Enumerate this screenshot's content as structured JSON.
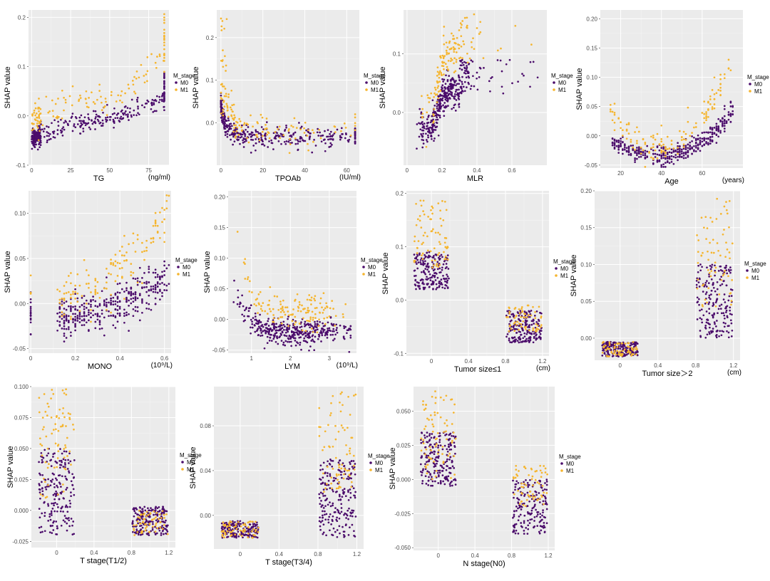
{
  "colors": {
    "M0": "#4b0c6b",
    "M1": "#f5b52e",
    "panel": "#ebebeb"
  },
  "chart_data": [
    {
      "type": "scatter",
      "id": "tg",
      "xlabel": "TG",
      "unit": "(ng/ml)",
      "ylabel": "SHAP value",
      "xlim": [
        -2,
        88
      ],
      "ylim": [
        -0.1,
        0.215
      ],
      "xticks": [
        0,
        25,
        50,
        75
      ],
      "yticks": [
        -0.1,
        0.0,
        0.1,
        0.2
      ],
      "ytick_labels": [
        "-0.1",
        "0.0",
        "0.1",
        "0.2"
      ],
      "legend": {
        "title": "M_stage",
        "entries": [
          "M0",
          "M1"
        ]
      },
      "shape": "tg",
      "density": "medium",
      "series": [
        {
          "name": "M0",
          "x_range": [
            0,
            85
          ],
          "y_trend": [
            [
              0,
              -0.045
            ],
            [
              25,
              -0.015
            ],
            [
              50,
              -0.005
            ],
            [
              85,
              0.03
            ]
          ],
          "spread": 0.02
        },
        {
          "name": "M1",
          "x_range": [
            0,
            85
          ],
          "y_trend": [
            [
              0,
              -0.01
            ],
            [
              25,
              0.04
            ],
            [
              50,
              0.03
            ],
            [
              85,
              0.12
            ]
          ],
          "spread": 0.035
        }
      ]
    },
    {
      "type": "scatter",
      "id": "tpoab",
      "xlabel": "TPOAb",
      "unit": "(IU/ml)",
      "ylabel": "SHAP value",
      "xlim": [
        -2,
        66
      ],
      "ylim": [
        -0.1,
        0.265
      ],
      "xticks": [
        0,
        20,
        40,
        60
      ],
      "yticks": [
        0.0,
        0.1,
        0.2
      ],
      "ytick_labels": [
        "0.0",
        "0.1",
        "0.2"
      ],
      "legend": {
        "title": "M_stage",
        "entries": [
          "M0",
          "M1"
        ]
      },
      "shape": "decay",
      "series": [
        {
          "name": "M0",
          "peak": 0.04,
          "base": -0.035,
          "spread": 0.012
        },
        {
          "name": "M1",
          "peak": 0.25,
          "base": -0.02,
          "spread": 0.012
        }
      ]
    },
    {
      "type": "scatter",
      "id": "mlr",
      "xlabel": "MLR",
      "unit": "",
      "ylabel": "SHAP value",
      "xlim": [
        -0.02,
        0.8
      ],
      "ylim": [
        -0.09,
        0.175
      ],
      "xticks": [
        0.0,
        0.2,
        0.4,
        0.6
      ],
      "yticks": [
        0.0,
        0.1
      ],
      "ytick_labels": [
        "0.0",
        "0.1"
      ],
      "legend": {
        "title": "M_stage",
        "entries": [
          "M0",
          "M1"
        ]
      },
      "shape": "sigmoid",
      "series": [
        {
          "name": "M0",
          "low": -0.03,
          "high": 0.04,
          "spread": 0.015
        },
        {
          "name": "M1",
          "low": -0.01,
          "high": 0.11,
          "spread": 0.02
        }
      ]
    },
    {
      "type": "scatter",
      "id": "age",
      "xlabel": "Age",
      "unit": "(years)",
      "ylabel": "SHAP value",
      "xlim": [
        10,
        80
      ],
      "ylim": [
        -0.055,
        0.215
      ],
      "xticks": [
        20,
        40,
        60
      ],
      "yticks": [
        -0.05,
        0.0,
        0.05,
        0.1,
        0.15,
        0.2
      ],
      "ytick_labels": [
        "-0.05",
        "0.00",
        "0.05",
        "0.10",
        "0.15",
        "0.20"
      ],
      "legend": {
        "title": "M_stage",
        "entries": [
          "M0",
          "M1"
        ]
      },
      "shape": "ushape",
      "series": [
        {
          "name": "M0",
          "min_x": 38,
          "min_y": -0.035,
          "curv": 5.5e-05,
          "spread": 0.008
        },
        {
          "name": "M1",
          "min_x": 38,
          "min_y": -0.02,
          "curv": 0.00011,
          "spread": 0.012
        }
      ]
    },
    {
      "type": "scatter",
      "id": "mono",
      "xlabel": "MONO",
      "unit": "(10⁹/L)",
      "ylabel": "SHAP value",
      "xlim": [
        -0.01,
        0.63
      ],
      "ylim": [
        -0.055,
        0.125
      ],
      "xticks": [
        0.0,
        0.2,
        0.4,
        0.6
      ],
      "yticks": [
        -0.05,
        0.0,
        0.05,
        0.1
      ],
      "ytick_labels": [
        "-0.05",
        "0.00",
        "0.05",
        "0.10"
      ],
      "legend": {
        "title": "M_stage",
        "entries": [
          "M0",
          "M1"
        ]
      },
      "shape": "rising",
      "series": [
        {
          "name": "M0",
          "start": -0.015,
          "end": 0.03,
          "spread": 0.012
        },
        {
          "name": "M1",
          "start": 0.005,
          "end": 0.1,
          "spread": 0.015
        }
      ]
    },
    {
      "type": "scatter",
      "id": "lym",
      "xlabel": "LYM",
      "unit": "(10⁹/L)",
      "ylabel": "SHAP value",
      "xlim": [
        0.4,
        3.7
      ],
      "ylim": [
        -0.055,
        0.21
      ],
      "xticks": [
        1,
        2,
        3
      ],
      "yticks": [
        -0.05,
        0.0,
        0.05,
        0.1,
        0.15,
        0.2
      ],
      "ytick_labels": [
        "-0.05",
        "0.00",
        "0.05",
        "0.10",
        "0.15",
        "0.20"
      ],
      "legend": {
        "title": "M_stage",
        "entries": [
          "M0",
          "M1"
        ]
      },
      "shape": "lym",
      "series": [
        {
          "name": "M0",
          "peak": 0.06,
          "base": -0.02,
          "spread": 0.01
        },
        {
          "name": "M1",
          "peak": 0.19,
          "base": 0.01,
          "spread": 0.015
        }
      ]
    },
    {
      "type": "scatter",
      "id": "ts1",
      "xlabel": "Tumor size≤1",
      "unit": "(cm)",
      "ylabel": "SHAP value",
      "xlim": [
        -0.27,
        1.27
      ],
      "ylim": [
        -0.105,
        0.205
      ],
      "xticks": [
        0.0,
        0.4,
        0.8,
        1.2
      ],
      "yticks": [
        -0.1,
        0.0,
        0.1,
        0.2
      ],
      "ytick_labels": [
        "-0.1",
        "0.0",
        "0.1",
        "0.2"
      ],
      "legend": {
        "title": "M_stage",
        "entries": [
          "M0",
          "M1"
        ]
      },
      "shape": "binary",
      "series": [
        {
          "name": "M0",
          "at0": [
            0.02,
            0.09
          ],
          "at1": [
            -0.08,
            -0.02
          ]
        },
        {
          "name": "M1",
          "at0": [
            0.06,
            0.19
          ],
          "at1": [
            -0.06,
            -0.01
          ]
        }
      ]
    },
    {
      "type": "scatter",
      "id": "ts2",
      "xlabel": "Tumor size＞2",
      "unit": "(cm)",
      "ylabel": "SHAP value",
      "xlim": [
        -0.27,
        1.27
      ],
      "ylim": [
        -0.03,
        0.2
      ],
      "xticks": [
        0.0,
        0.4,
        0.8,
        1.2
      ],
      "yticks": [
        0.0,
        0.05,
        0.1,
        0.15,
        0.2
      ],
      "ytick_labels": [
        "0.00",
        "0.05",
        "0.10",
        "0.15",
        "0.20"
      ],
      "legend": {
        "title": "M_stage",
        "entries": [
          "M0",
          "M1"
        ]
      },
      "shape": "binary",
      "series": [
        {
          "name": "M0",
          "at0": [
            -0.025,
            -0.005
          ],
          "at1": [
            0.0,
            0.1
          ]
        },
        {
          "name": "M1",
          "at0": [
            -0.025,
            -0.005
          ],
          "at1": [
            0.04,
            0.19
          ]
        }
      ]
    },
    {
      "type": "scatter",
      "id": "t12",
      "xlabel": "T stage(T1/2)",
      "unit": "",
      "ylabel": "SHAP value",
      "xlim": [
        -0.27,
        1.27
      ],
      "ylim": [
        -0.03,
        0.1
      ],
      "xticks": [
        0.0,
        0.4,
        0.8,
        1.2
      ],
      "yticks": [
        -0.025,
        0.0,
        0.025,
        0.05,
        0.075,
        0.1
      ],
      "ytick_labels": [
        "-0.025",
        "0.000",
        "0.025",
        "0.050",
        "0.075",
        "0.100"
      ],
      "legend": {
        "title": "M_stage",
        "entries": [
          "M0",
          "M1"
        ]
      },
      "shape": "binary",
      "series": [
        {
          "name": "M0",
          "at0": [
            -0.02,
            0.05
          ],
          "at1": [
            -0.02,
            0.003
          ]
        },
        {
          "name": "M1",
          "at0": [
            0.01,
            0.098
          ],
          "at1": [
            -0.02,
            0.0
          ]
        }
      ]
    },
    {
      "type": "scatter",
      "id": "t34",
      "xlabel": "T stage(T3/4)",
      "unit": "",
      "ylabel": "SHAP value",
      "xlim": [
        -0.27,
        1.27
      ],
      "ylim": [
        -0.03,
        0.115
      ],
      "xticks": [
        0.0,
        0.4,
        0.8,
        1.2
      ],
      "yticks": [
        0.0,
        0.04,
        0.08
      ],
      "ytick_labels": [
        "0.00",
        "0.04",
        "0.08"
      ],
      "legend": {
        "title": "M_stage",
        "entries": [
          "M0",
          "M1"
        ]
      },
      "shape": "binary",
      "series": [
        {
          "name": "M0",
          "at0": [
            -0.02,
            -0.005
          ],
          "at1": [
            -0.02,
            0.05
          ]
        },
        {
          "name": "M1",
          "at0": [
            -0.02,
            -0.005
          ],
          "at1": [
            0.02,
            0.11
          ]
        }
      ]
    },
    {
      "type": "scatter",
      "id": "n0",
      "xlabel": "N stage(N0)",
      "unit": "",
      "ylabel": "SHAP value",
      "xlim": [
        -0.27,
        1.27
      ],
      "ylim": [
        -0.052,
        0.068
      ],
      "xticks": [
        0.0,
        0.4,
        0.8,
        1.2
      ],
      "yticks": [
        -0.05,
        -0.025,
        0.0,
        0.025,
        0.05
      ],
      "ytick_labels": [
        "-0.050",
        "-0.025",
        "0.000",
        "0.025",
        "0.050"
      ],
      "legend": {
        "title": "M_stage",
        "entries": [
          "M0",
          "M1"
        ]
      },
      "shape": "binary",
      "series": [
        {
          "name": "M0",
          "at0": [
            -0.005,
            0.035
          ],
          "at1": [
            -0.04,
            0.0
          ]
        },
        {
          "name": "M1",
          "at0": [
            0.0,
            0.065
          ],
          "at1": [
            -0.02,
            0.01
          ]
        }
      ]
    }
  ]
}
